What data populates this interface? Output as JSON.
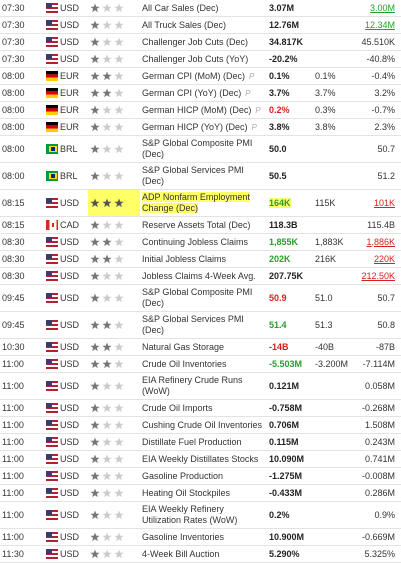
{
  "rows": [
    {
      "time": "07:30",
      "currency": "USD",
      "importance": 1,
      "event": "All Car Sales (Dec)",
      "actual": "3.07M",
      "forecast": null,
      "previous": "3.00M",
      "previous_tone": "up"
    },
    {
      "time": "07:30",
      "currency": "USD",
      "importance": 1,
      "event": "All Truck Sales (Dec)",
      "actual": "12.76M",
      "forecast": null,
      "previous": "12.34M",
      "previous_tone": "up"
    },
    {
      "time": "07:30",
      "currency": "USD",
      "importance": 1,
      "event": "Challenger Job Cuts (Dec)",
      "actual": "34.817K",
      "forecast": null,
      "previous": "45.510K"
    },
    {
      "time": "07:30",
      "currency": "USD",
      "importance": 1,
      "event": "Challenger Job Cuts (YoY)",
      "actual": "-20.2%",
      "forecast": null,
      "previous": "-40.8%"
    },
    {
      "time": "08:00",
      "currency": "EUR",
      "importance": 2,
      "event": "German CPI (MoM) (Dec)",
      "badge": "P",
      "actual": "0.1%",
      "forecast": "0.1%",
      "previous": "-0.4%"
    },
    {
      "time": "08:00",
      "currency": "EUR",
      "importance": 2,
      "event": "German CPI (YoY) (Dec)",
      "badge": "P",
      "actual": "3.7%",
      "forecast": "3.7%",
      "previous": "3.2%"
    },
    {
      "time": "08:00",
      "currency": "EUR",
      "importance": 1,
      "event": "German HICP (MoM) (Dec)",
      "badge": "P",
      "actual": "0.2%",
      "actual_tone": "down",
      "forecast": "0.3%",
      "previous": "-0.7%"
    },
    {
      "time": "08:00",
      "currency": "EUR",
      "importance": 1,
      "event": "German HICP (YoY) (Dec)",
      "badge": "P",
      "actual": "3.8%",
      "forecast": "3.8%",
      "previous": "2.3%"
    },
    {
      "time": "08:00",
      "currency": "BRL",
      "importance": 1,
      "event": "S&P Global Composite PMI (Dec)",
      "actual": "50.0",
      "forecast": null,
      "previous": "50.7"
    },
    {
      "time": "08:00",
      "currency": "BRL",
      "importance": 1,
      "event": "S&P Global Services PMI (Dec)",
      "actual": "50.5",
      "forecast": null,
      "previous": "51.2"
    },
    {
      "time": "08:15",
      "currency": "USD",
      "importance": 3,
      "highlight": true,
      "event": "ADP Nonfarm Employment Change (Dec)",
      "actual": "164K",
      "actual_tone": "up",
      "forecast": "115K",
      "previous": "101K",
      "previous_tone": "down"
    },
    {
      "time": "08:15",
      "currency": "CAD",
      "importance": 1,
      "event": "Reserve Assets Total (Dec)",
      "actual": "118.3B",
      "forecast": null,
      "previous": "115.4B"
    },
    {
      "time": "08:30",
      "currency": "USD",
      "importance": 2,
      "event": "Continuing Jobless Claims",
      "actual": "1,855K",
      "actual_tone": "up",
      "forecast": "1,883K",
      "previous": "1,886K",
      "previous_tone": "down"
    },
    {
      "time": "08:30",
      "currency": "USD",
      "importance": 2,
      "event": "Initial Jobless Claims",
      "actual": "202K",
      "actual_tone": "up",
      "forecast": "216K",
      "previous": "220K",
      "previous_tone": "down"
    },
    {
      "time": "08:30",
      "currency": "USD",
      "importance": 1,
      "event": "Jobless Claims 4-Week Avg.",
      "actual": "207.75K",
      "forecast": null,
      "previous": "212.50K",
      "previous_tone": "down"
    },
    {
      "time": "09:45",
      "currency": "USD",
      "importance": 1,
      "event": "S&P Global Composite PMI (Dec)",
      "actual": "50.9",
      "actual_tone": "down",
      "forecast": "51.0",
      "previous": "50.7"
    },
    {
      "time": "09:45",
      "currency": "USD",
      "importance": 2,
      "event": "S&P Global Services PMI (Dec)",
      "actual": "51.4",
      "actual_tone": "up",
      "forecast": "51.3",
      "previous": "50.8"
    },
    {
      "time": "10:30",
      "currency": "USD",
      "importance": 2,
      "event": "Natural Gas Storage",
      "actual": "-14B",
      "actual_tone": "down",
      "forecast": "-40B",
      "previous": "-87B"
    },
    {
      "time": "11:00",
      "currency": "USD",
      "importance": 2,
      "event": "Crude Oil Inventories",
      "actual": "-5.503M",
      "actual_tone": "up",
      "forecast": "-3.200M",
      "previous": "-7.114M"
    },
    {
      "time": "11:00",
      "currency": "USD",
      "importance": 1,
      "event": "EIA Refinery Crude Runs (WoW)",
      "actual": "0.121M",
      "forecast": null,
      "previous": "0.058M"
    },
    {
      "time": "11:00",
      "currency": "USD",
      "importance": 1,
      "event": "Crude Oil Imports",
      "actual": "-0.758M",
      "forecast": null,
      "previous": "-0.268M"
    },
    {
      "time": "11:00",
      "currency": "USD",
      "importance": 1,
      "event": "Cushing Crude Oil Inventories",
      "actual": "0.706M",
      "forecast": null,
      "previous": "1.508M"
    },
    {
      "time": "11:00",
      "currency": "USD",
      "importance": 1,
      "event": "Distillate Fuel Production",
      "actual": "0.115M",
      "forecast": null,
      "previous": "0.243M"
    },
    {
      "time": "11:00",
      "currency": "USD",
      "importance": 1,
      "event": "EIA Weekly Distillates Stocks",
      "actual": "10.090M",
      "forecast": null,
      "previous": "0.741M"
    },
    {
      "time": "11:00",
      "currency": "USD",
      "importance": 1,
      "event": "Gasoline Production",
      "actual": "-1.275M",
      "forecast": null,
      "previous": "-0.008M"
    },
    {
      "time": "11:00",
      "currency": "USD",
      "importance": 1,
      "event": "Heating Oil Stockpiles",
      "actual": "-0.433M",
      "forecast": null,
      "previous": "0.286M"
    },
    {
      "time": "11:00",
      "currency": "USD",
      "importance": 1,
      "event": "EIA Weekly Refinery Utilization Rates (WoW)",
      "actual": "0.2%",
      "forecast": null,
      "previous": "0.9%"
    },
    {
      "time": "11:00",
      "currency": "USD",
      "importance": 1,
      "event": "Gasoline Inventories",
      "actual": "10.900M",
      "forecast": null,
      "previous": "-0.669M"
    },
    {
      "time": "11:30",
      "currency": "USD",
      "importance": 1,
      "event": "4-Week Bill Auction",
      "actual": "5.290%",
      "forecast": null,
      "previous": "5.325%"
    }
  ]
}
